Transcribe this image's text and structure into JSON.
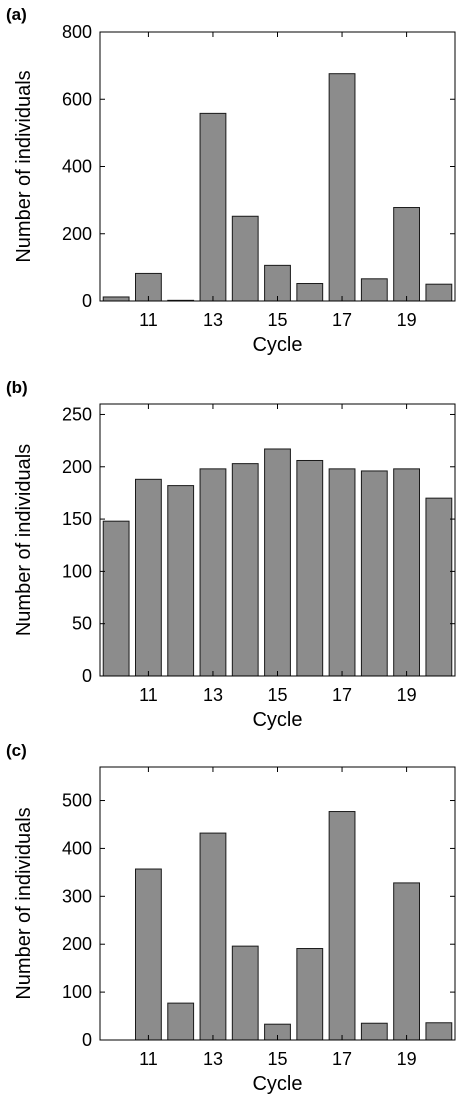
{
  "chart_data": [
    {
      "type": "bar",
      "panel_label": "(a)",
      "x": [
        10,
        11,
        12,
        13,
        14,
        15,
        16,
        17,
        18,
        19,
        20
      ],
      "values": [
        12,
        82,
        2,
        558,
        252,
        106,
        52,
        676,
        66,
        278,
        50
      ],
      "xticks": [
        11,
        13,
        15,
        17,
        19
      ],
      "yticks": [
        0,
        200,
        400,
        600,
        800
      ],
      "ylim": [
        0,
        800
      ],
      "xlabel": "Cycle",
      "ylabel": "Number of individuals",
      "bar_color": "#8c8c8c"
    },
    {
      "type": "bar",
      "panel_label": "(b)",
      "x": [
        10,
        11,
        12,
        13,
        14,
        15,
        16,
        17,
        18,
        19,
        20
      ],
      "values": [
        148,
        188,
        182,
        198,
        203,
        217,
        206,
        198,
        196,
        198,
        170
      ],
      "xticks": [
        11,
        13,
        15,
        17,
        19
      ],
      "yticks": [
        0,
        50,
        100,
        150,
        200,
        250
      ],
      "ylim": [
        0,
        260
      ],
      "xlabel": "Cycle",
      "ylabel": "Number of individuals",
      "bar_color": "#8c8c8c"
    },
    {
      "type": "bar",
      "panel_label": "(c)",
      "x": [
        10,
        11,
        12,
        13,
        14,
        15,
        16,
        17,
        18,
        19,
        20
      ],
      "values": [
        0,
        357,
        77,
        432,
        196,
        33,
        191,
        477,
        35,
        328,
        36
      ],
      "xticks": [
        11,
        13,
        15,
        17,
        19
      ],
      "yticks": [
        0,
        100,
        200,
        300,
        400,
        500
      ],
      "ylim": [
        0,
        570
      ],
      "xlabel": "Cycle",
      "ylabel": "Number of individuals",
      "bar_color": "#8c8c8c"
    }
  ]
}
